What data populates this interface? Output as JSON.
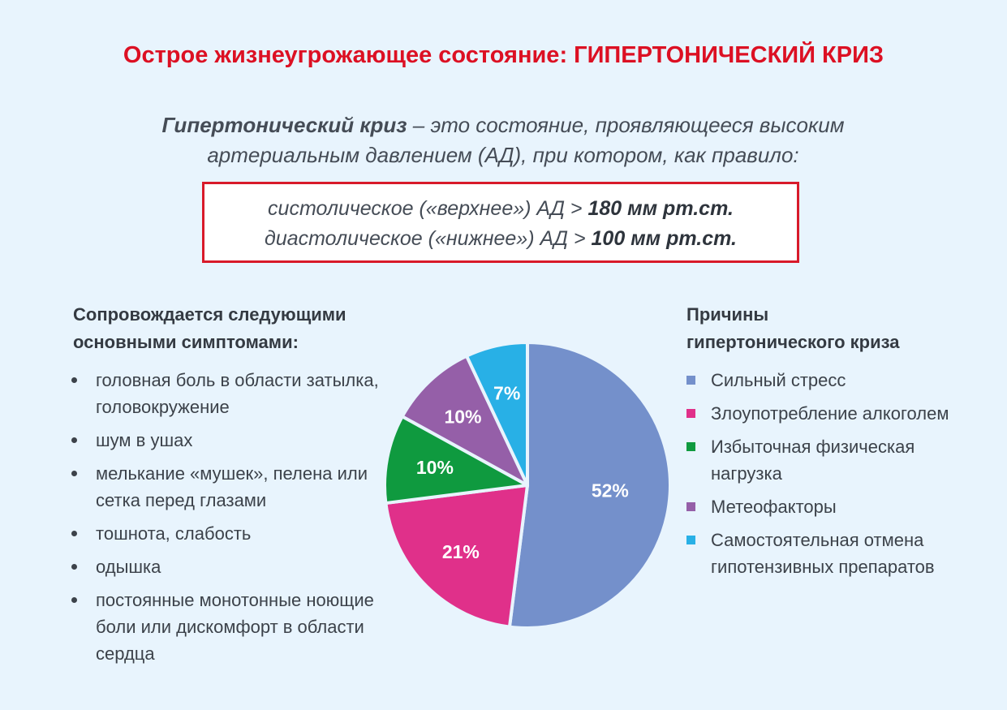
{
  "title": "Острое жизнеугрожающее состояние: ГИПЕРТОНИЧЕСКИЙ КРИЗ",
  "definition": {
    "term": "Гипертонический криз",
    "text_line1": " – это состояние, проявляющееся высоким",
    "text_line2": "артериальным давлением (АД), при котором, как правило:"
  },
  "criteria": {
    "systolic_text": "систолическое («верхнее») АД > ",
    "systolic_value": "180 мм рт.ст.",
    "diastolic_text": "диастолическое («нижнее») АД > ",
    "diastolic_value": "100 мм рт.ст."
  },
  "symptoms": {
    "heading_line1": "Сопровождается следующими",
    "heading_line2": "основными симптомами:",
    "items": [
      "головная боль в области затылка, головокружение",
      "шум в ушах",
      "мелькание «мушек», пелена или сетка перед глазами",
      "тошнота, слабость",
      "одышка",
      "постоянные монотонные ноющие боли или дискомфорт в области сердца"
    ]
  },
  "causes": {
    "heading_line1": "Причины",
    "heading_line2": "гипертонического криза"
  },
  "chart_data": {
    "type": "pie",
    "title": "Причины гипертонического криза",
    "slices": [
      {
        "label": "Сильный стресс",
        "value": 52,
        "display": "52%",
        "color": "#7490cb"
      },
      {
        "label": "Злоупотребление алкоголем",
        "value": 21,
        "display": "21%",
        "color": "#e0308a"
      },
      {
        "label": "Избыточная физическая нагрузка",
        "value": 10,
        "display": "10%",
        "color": "#0f9a3f"
      },
      {
        "label": "Метеофакторы",
        "value": 10,
        "display": "10%",
        "color": "#955fa8"
      },
      {
        "label": "Самостоятельная отмена гипотензивных препаратов",
        "value": 7,
        "display": "7%",
        "color": "#28b0e6"
      }
    ],
    "legend_position": "right"
  }
}
